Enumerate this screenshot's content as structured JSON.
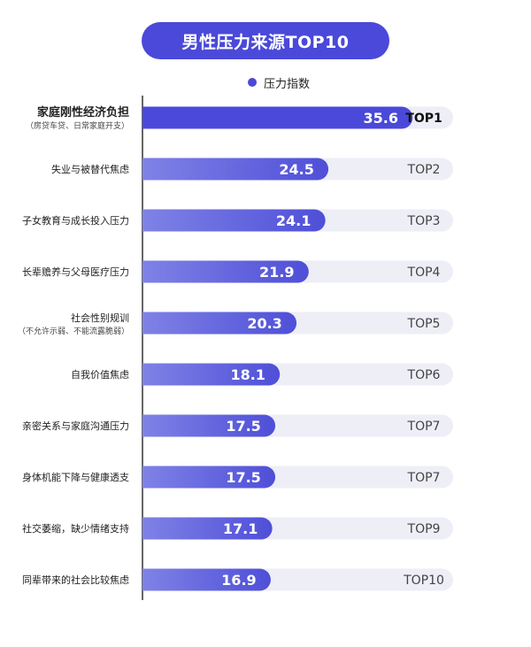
{
  "title": "男性压力来源TOP10",
  "legend": {
    "label": "压力指数"
  },
  "colors": {
    "accent": "#4a49d9",
    "bar_gradient_start": "#7f82e6",
    "bar_gradient_end": "#4f4fd8",
    "track": "#eeeef7",
    "axis": "#333333"
  },
  "chart_data": {
    "type": "bar",
    "orientation": "horizontal",
    "categories": [
      {
        "label": "家庭刚性经济负担",
        "sublabel": "（房贷车贷、日常家庭开支）"
      },
      {
        "label": "失业与被替代焦虑",
        "sublabel": ""
      },
      {
        "label": "子女教育与成长投入压力",
        "sublabel": ""
      },
      {
        "label": "长辈赡养与父母医疗压力",
        "sublabel": ""
      },
      {
        "label": "社会性别规训",
        "sublabel": "（不允许示弱、不能流露脆弱）"
      },
      {
        "label": "自我价值焦虑",
        "sublabel": ""
      },
      {
        "label": "亲密关系与家庭沟通压力",
        "sublabel": ""
      },
      {
        "label": "身体机能下降与健康透支",
        "sublabel": ""
      },
      {
        "label": "社交萎缩，缺少情绪支持",
        "sublabel": ""
      },
      {
        "label": "同辈带来的社会比较焦虑",
        "sublabel": ""
      }
    ],
    "series": [
      {
        "name": "压力指数",
        "values": [
          35.6,
          24.5,
          24.1,
          21.9,
          20.3,
          18.1,
          17.5,
          17.5,
          17.1,
          16.9
        ]
      }
    ],
    "ranks": [
      "TOP1",
      "TOP2",
      "TOP3",
      "TOP4",
      "TOP5",
      "TOP6",
      "TOP7",
      "TOP7",
      "TOP9",
      "TOP10"
    ],
    "xlim": [
      0,
      40
    ],
    "highlight_index": 0,
    "legend_position": "top-center"
  }
}
